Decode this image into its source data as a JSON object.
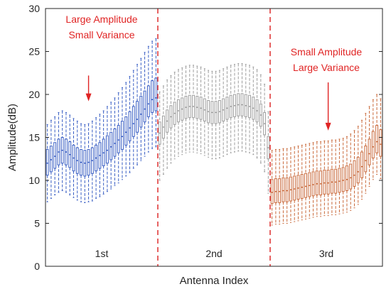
{
  "chart_data": {
    "type": "box",
    "xlabel": "Antenna Index",
    "ylabel": "Amplitude(dB)",
    "ylim": [
      0,
      30
    ],
    "yticks": [
      0,
      5,
      10,
      15,
      20,
      25,
      30
    ],
    "grid": false,
    "boxes_per_group": 30,
    "groups": [
      {
        "label": "1st",
        "color": "#3a5fc4",
        "median": [
          12.0,
          12.4,
          12.8,
          13.3,
          13.5,
          13.3,
          13.0,
          12.6,
          12.3,
          12.1,
          12.0,
          12.1,
          12.3,
          12.6,
          12.9,
          13.2,
          13.5,
          13.9,
          14.3,
          14.7,
          15.1,
          15.6,
          16.1,
          16.6,
          17.1,
          17.7,
          18.3,
          18.9,
          19.4,
          19.6
        ],
        "q1": [
          10.6,
          11.0,
          11.4,
          11.8,
          12.0,
          11.8,
          11.5,
          11.1,
          10.8,
          10.6,
          10.5,
          10.6,
          10.8,
          11.1,
          11.4,
          11.7,
          12.0,
          12.4,
          12.8,
          13.2,
          13.6,
          14.1,
          14.6,
          15.1,
          15.6,
          16.2,
          16.8,
          17.4,
          17.9,
          18.1
        ],
        "q3": [
          13.6,
          14.0,
          14.4,
          14.8,
          15.0,
          14.8,
          14.5,
          14.1,
          13.8,
          13.6,
          13.5,
          13.6,
          13.8,
          14.1,
          14.4,
          14.8,
          15.2,
          15.6,
          16.0,
          16.4,
          16.9,
          17.4,
          18.0,
          18.6,
          19.2,
          19.8,
          20.4,
          21.0,
          21.6,
          21.9
        ],
        "lo": [
          7.5,
          7.9,
          8.3,
          8.6,
          8.8,
          8.6,
          8.3,
          8.0,
          7.7,
          7.5,
          7.4,
          7.5,
          7.6,
          7.9,
          8.1,
          8.4,
          8.7,
          9.0,
          9.4,
          9.7,
          10.1,
          10.5,
          10.9,
          11.4,
          11.8,
          12.3,
          12.8,
          13.3,
          13.7,
          13.9
        ],
        "hi": [
          16.5,
          17.0,
          17.4,
          17.9,
          18.1,
          17.9,
          17.6,
          17.2,
          16.9,
          16.6,
          16.5,
          16.6,
          16.9,
          17.3,
          17.7,
          18.1,
          18.6,
          19.1,
          19.6,
          20.2,
          20.8,
          21.4,
          22.1,
          22.8,
          23.5,
          24.2,
          24.9,
          25.6,
          26.2,
          26.5
        ]
      },
      {
        "label": "2nd",
        "color": "#9e9e9e",
        "median": [
          15.5,
          16.2,
          16.9,
          17.4,
          17.8,
          18.1,
          18.3,
          18.5,
          18.6,
          18.6,
          18.5,
          18.4,
          18.2,
          18.0,
          17.9,
          17.9,
          18.0,
          18.2,
          18.4,
          18.6,
          18.7,
          18.8,
          18.8,
          18.7,
          18.6,
          18.4,
          18.1,
          17.6,
          16.6,
          13.8
        ],
        "q1": [
          14.2,
          14.9,
          15.6,
          16.1,
          16.5,
          16.8,
          17.0,
          17.2,
          17.3,
          17.3,
          17.2,
          17.1,
          16.9,
          16.7,
          16.6,
          16.6,
          16.7,
          16.9,
          17.1,
          17.3,
          17.4,
          17.5,
          17.5,
          17.4,
          17.3,
          17.1,
          16.8,
          16.3,
          15.3,
          12.5
        ],
        "q3": [
          16.8,
          17.5,
          18.2,
          18.7,
          19.1,
          19.4,
          19.6,
          19.8,
          19.9,
          19.9,
          19.8,
          19.7,
          19.5,
          19.3,
          19.2,
          19.2,
          19.3,
          19.5,
          19.7,
          19.9,
          20.0,
          20.1,
          20.1,
          20.0,
          19.9,
          19.7,
          19.4,
          18.9,
          17.9,
          15.1
        ],
        "lo": [
          10.0,
          10.7,
          11.4,
          12.0,
          12.5,
          12.8,
          13.0,
          13.2,
          13.3,
          13.3,
          13.2,
          13.1,
          12.9,
          12.7,
          12.5,
          12.5,
          12.6,
          12.8,
          13.0,
          13.2,
          13.3,
          13.4,
          13.4,
          13.3,
          13.2,
          13.0,
          12.6,
          12.0,
          11.0,
          8.5
        ],
        "hi": [
          20.3,
          21.0,
          21.7,
          22.2,
          22.6,
          22.9,
          23.1,
          23.3,
          23.4,
          23.4,
          23.3,
          23.2,
          23.0,
          22.8,
          22.7,
          22.7,
          22.8,
          23.0,
          23.2,
          23.4,
          23.5,
          23.6,
          23.6,
          23.5,
          23.4,
          23.2,
          22.9,
          22.3,
          21.2,
          18.0
        ]
      },
      {
        "label": "3rd",
        "color": "#c96a3c",
        "median": [
          8.6,
          8.7,
          8.7,
          8.8,
          8.8,
          8.9,
          9.0,
          9.1,
          9.2,
          9.3,
          9.4,
          9.5,
          9.6,
          9.6,
          9.7,
          9.7,
          9.8,
          9.8,
          9.9,
          10.0,
          10.1,
          10.3,
          10.6,
          11.0,
          11.6,
          12.3,
          13.1,
          13.9,
          14.5,
          14.2
        ],
        "q1": [
          7.3,
          7.4,
          7.4,
          7.5,
          7.5,
          7.6,
          7.7,
          7.8,
          7.9,
          8.0,
          8.1,
          8.2,
          8.3,
          8.3,
          8.4,
          8.4,
          8.5,
          8.5,
          8.6,
          8.7,
          8.8,
          9.0,
          9.3,
          9.7,
          10.3,
          11.0,
          11.8,
          12.6,
          13.2,
          12.8
        ],
        "q3": [
          10.1,
          10.2,
          10.2,
          10.3,
          10.3,
          10.4,
          10.5,
          10.6,
          10.7,
          10.8,
          10.9,
          11.0,
          11.1,
          11.1,
          11.2,
          11.2,
          11.3,
          11.3,
          11.4,
          11.5,
          11.7,
          11.9,
          12.3,
          12.7,
          13.3,
          14.0,
          14.8,
          15.7,
          16.4,
          15.9
        ],
        "lo": [
          4.8,
          4.9,
          4.9,
          5.0,
          5.0,
          5.1,
          5.2,
          5.3,
          5.4,
          5.5,
          5.6,
          5.7,
          5.8,
          5.8,
          5.9,
          5.9,
          6.0,
          6.0,
          6.1,
          6.2,
          6.3,
          6.5,
          6.8,
          7.2,
          7.8,
          8.5,
          9.3,
          10.1,
          10.7,
          10.2
        ],
        "hi": [
          13.5,
          13.6,
          13.6,
          13.7,
          13.7,
          13.8,
          13.9,
          14.0,
          14.1,
          14.2,
          14.3,
          14.4,
          14.5,
          14.5,
          14.6,
          14.6,
          14.7,
          14.7,
          14.8,
          14.9,
          15.1,
          15.4,
          15.8,
          16.3,
          17.0,
          17.8,
          18.6,
          19.4,
          20.0,
          19.5
        ]
      }
    ],
    "dividers": {
      "color": "#e03c3c",
      "style": "dashed"
    },
    "annotations": [
      {
        "lines": [
          "Large Amplitude",
          "Small Variance"
        ],
        "group": 0,
        "arrow_box": 11,
        "arrow_top": 22.2,
        "arrow_bottom": 19.2,
        "color": "#e02424"
      },
      {
        "lines": [
          "Small Amplitude",
          "Large Variance"
        ],
        "group": 2,
        "arrow_box": 15,
        "arrow_top": 21.4,
        "arrow_bottom": 15.8,
        "color": "#e02424"
      }
    ]
  }
}
